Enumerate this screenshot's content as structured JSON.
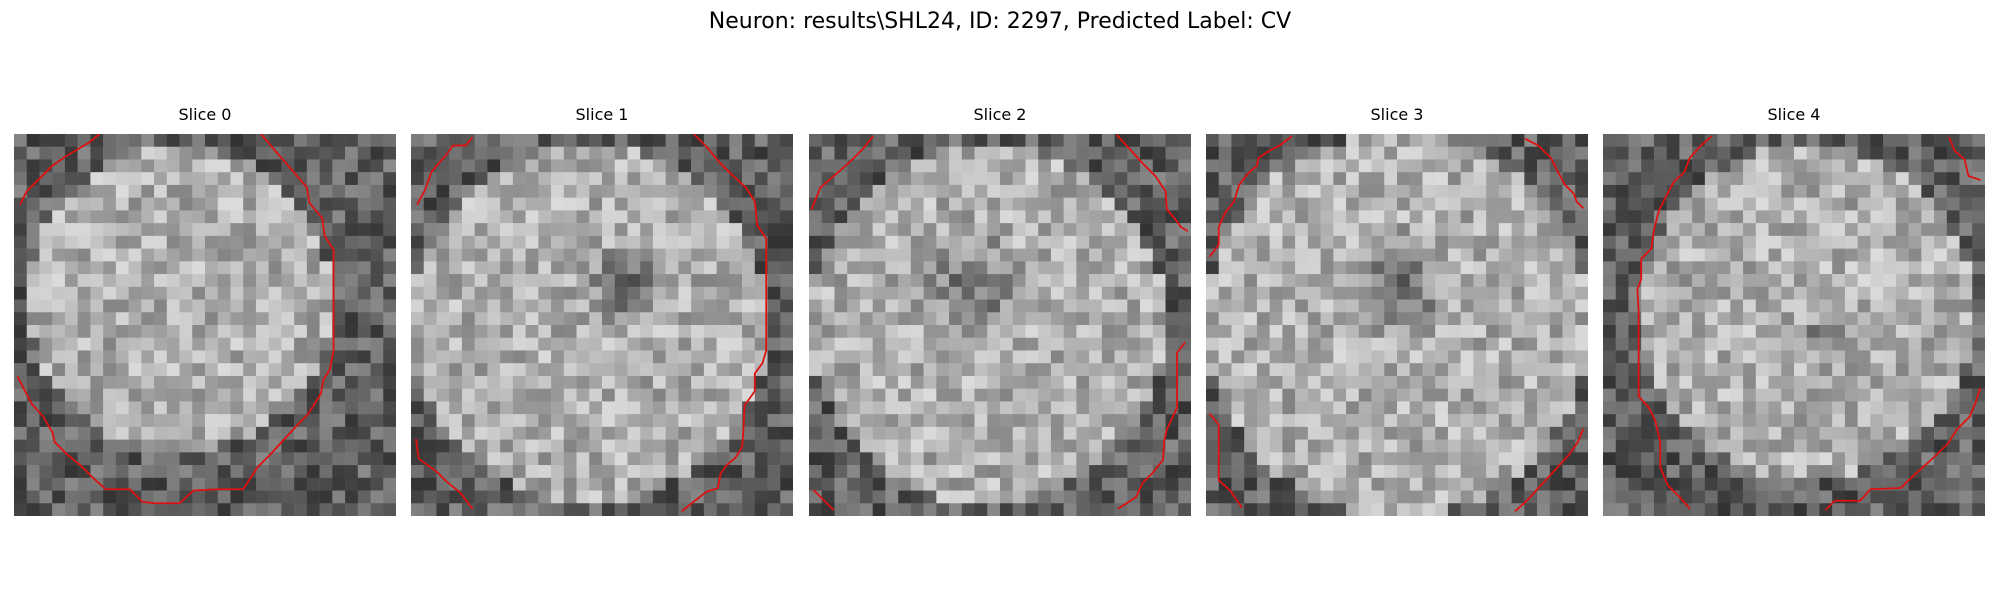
{
  "figure": {
    "title": "Neuron: results\\SHL24, ID: 2297, Predicted Label: CV"
  },
  "slices": [
    {
      "label": "Slice 0"
    },
    {
      "label": "Slice 1"
    },
    {
      "label": "Slice 2"
    },
    {
      "label": "Slice 3"
    },
    {
      "label": "Slice 4"
    }
  ],
  "colors": {
    "contour": "#e01010",
    "colormap": "gray"
  }
}
